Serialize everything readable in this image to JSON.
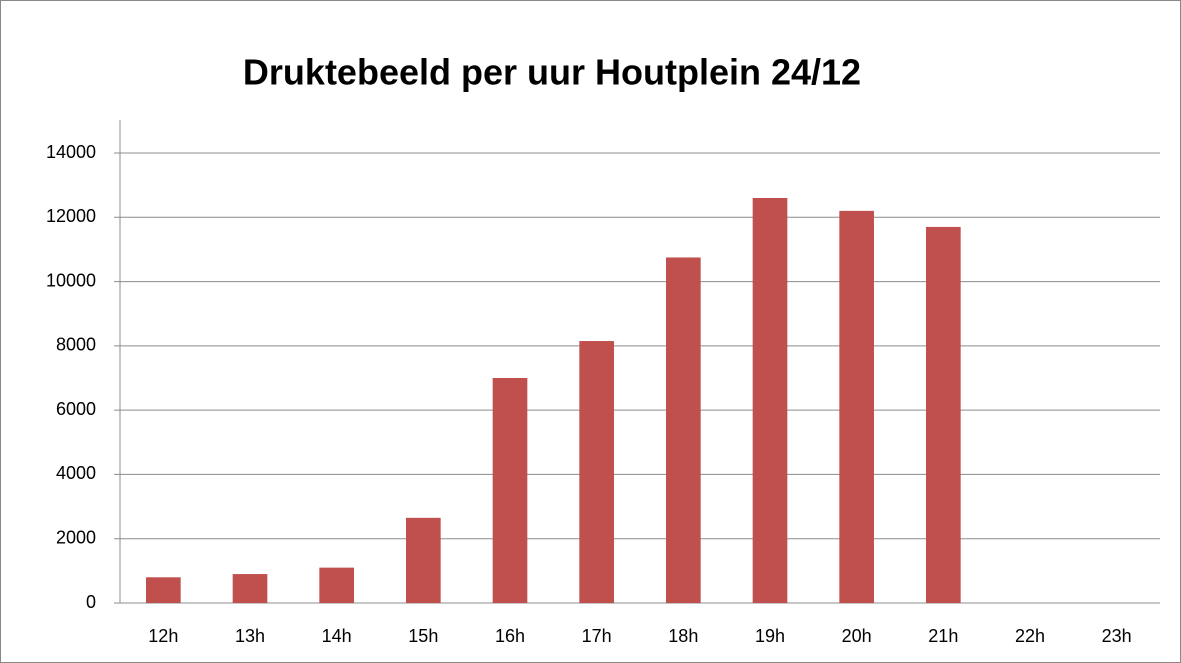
{
  "chart_data": {
    "type": "bar",
    "title": "Druktebeeld per uur Houtplein 24/12",
    "categories": [
      "12h",
      "13h",
      "14h",
      "15h",
      "16h",
      "17h",
      "18h",
      "19h",
      "20h",
      "21h",
      "22h",
      "23h"
    ],
    "values": [
      800,
      900,
      1100,
      2650,
      7000,
      8150,
      10750,
      12600,
      12200,
      11700,
      0,
      0
    ],
    "color": "#c0504d",
    "ylim": [
      0,
      14000
    ],
    "yticks": [
      0,
      2000,
      4000,
      6000,
      8000,
      10000,
      12000,
      14000
    ],
    "grid": true
  }
}
